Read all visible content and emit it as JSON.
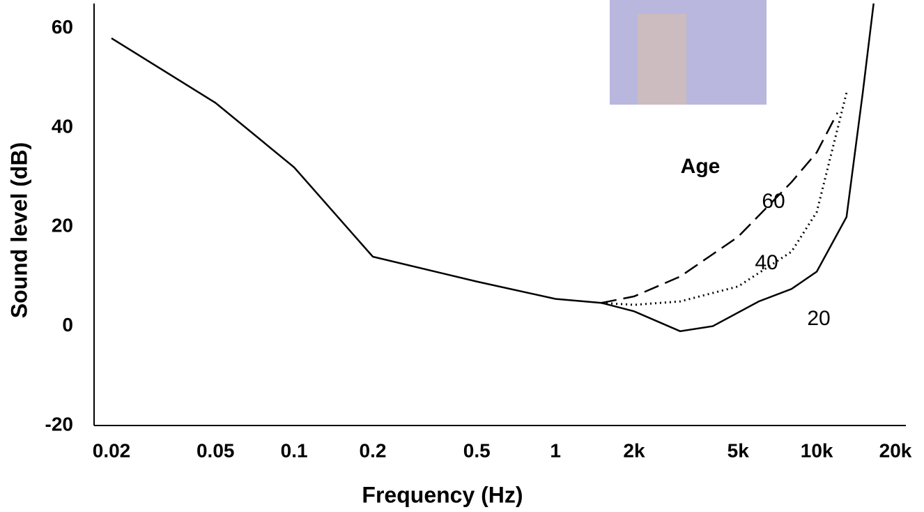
{
  "chart_data": {
    "type": "line",
    "x_label": "Frequency (Hz)",
    "y_label": "Sound level (dB)",
    "annotation": "Age",
    "xscale": "log",
    "xlim": [
      0.02,
      20
    ],
    "ylim": [
      -20,
      65
    ],
    "xticks": [
      0.02,
      0.05,
      0.1,
      0.2,
      0.5,
      1,
      {
        "value": 2,
        "label": "2k"
      },
      {
        "value": 5,
        "label": "5k"
      },
      {
        "value": 10,
        "label": "10k"
      },
      {
        "value": 20,
        "label": "20k"
      }
    ],
    "yticks": [
      -20,
      0,
      20,
      40,
      60
    ],
    "series": [
      {
        "name": "60",
        "color": "#000000",
        "dash": "dashed",
        "x": [
          1.5,
          2,
          3,
          5,
          8,
          10,
          12
        ],
        "values": [
          4.7,
          6,
          10,
          18,
          29,
          35,
          43
        ]
      },
      {
        "name": "40",
        "color": "#000000",
        "dash": "dotted",
        "x": [
          1.5,
          2,
          3,
          5,
          8,
          10,
          13
        ],
        "values": [
          4.7,
          4.3,
          5,
          8,
          15,
          23,
          47
        ]
      },
      {
        "name": "20",
        "color": "#000000",
        "dash": "solid",
        "x": [
          0.02,
          0.05,
          0.1,
          0.2,
          0.5,
          1,
          1.5,
          2,
          3,
          4,
          6,
          8,
          10,
          13,
          15,
          16.5
        ],
        "values": [
          58,
          45,
          32,
          14,
          9,
          5.5,
          4.7,
          3,
          -1,
          0,
          5,
          7.5,
          11,
          22,
          47,
          65
        ]
      }
    ]
  }
}
